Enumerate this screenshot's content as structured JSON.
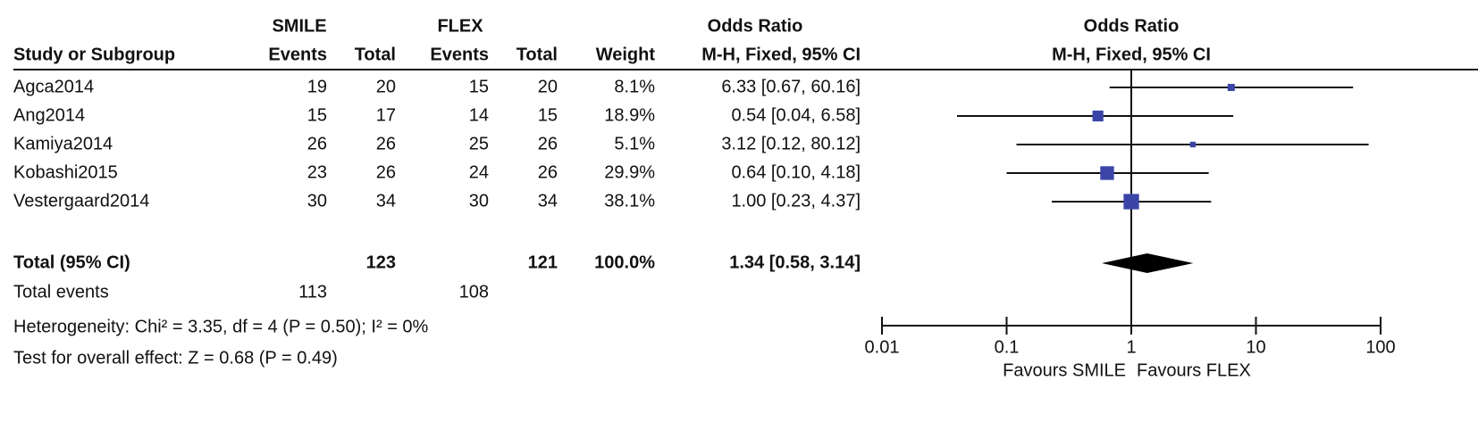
{
  "chart_data": {
    "type": "forest",
    "groups": [
      "SMILE",
      "FLEX",
      "Odds Ratio"
    ],
    "columns": [
      "Study or Subgroup",
      "Events",
      "Total",
      "Events",
      "Total",
      "Weight",
      "M-H, Fixed, 95% CI"
    ],
    "plot_title": "Odds Ratio",
    "plot_subtitle": "M-H, Fixed, 95% CI",
    "studies": [
      "Agca2014",
      "Ang2014",
      "Kamiya2014",
      "Kobashi2015",
      "Vestergaard2014"
    ],
    "smile_events": [
      19,
      15,
      26,
      23,
      30
    ],
    "smile_total": [
      20,
      17,
      26,
      26,
      34
    ],
    "flex_events": [
      15,
      14,
      25,
      24,
      30
    ],
    "flex_total": [
      20,
      15,
      26,
      26,
      34
    ],
    "weights": [
      8.1,
      18.9,
      5.1,
      29.9,
      38.1
    ],
    "weight_labels": [
      "8.1%",
      "18.9%",
      "5.1%",
      "29.9%",
      "38.1%"
    ],
    "or": [
      6.33,
      0.54,
      3.12,
      0.64,
      1.0
    ],
    "ci_low": [
      0.67,
      0.04,
      0.12,
      0.1,
      0.23
    ],
    "ci_high": [
      60.16,
      6.58,
      80.12,
      4.18,
      4.37
    ],
    "or_labels": [
      "6.33 [0.67, 60.16]",
      "0.54 [0.04, 6.58]",
      "3.12 [0.12, 80.12]",
      "0.64 [0.10, 4.18]",
      "1.00 [0.23, 4.37]"
    ],
    "total": {
      "label": "Total (95% CI)",
      "smile_total": 123,
      "flex_total": 121,
      "weight": 100,
      "weight_label": "100.0%",
      "or": 1.34,
      "ci_low": 0.58,
      "ci_high": 3.14,
      "or_label": "1.34 [0.58, 3.14]"
    },
    "total_events": {
      "label": "Total events",
      "smile": 113,
      "flex": 108
    },
    "heterogeneity": "Heterogeneity: Chi² = 3.35, df = 4 (P = 0.50); I² = 0%",
    "overall_effect": "Test for overall effect: Z = 0.68 (P = 0.49)",
    "xlim": [
      0.01,
      100
    ],
    "xticks": [
      0.01,
      0.1,
      1,
      10,
      100
    ],
    "log_x": true,
    "xlabel_left": "Favours SMILE",
    "xlabel_right": "Favours FLEX",
    "color": "#3b45a8"
  }
}
